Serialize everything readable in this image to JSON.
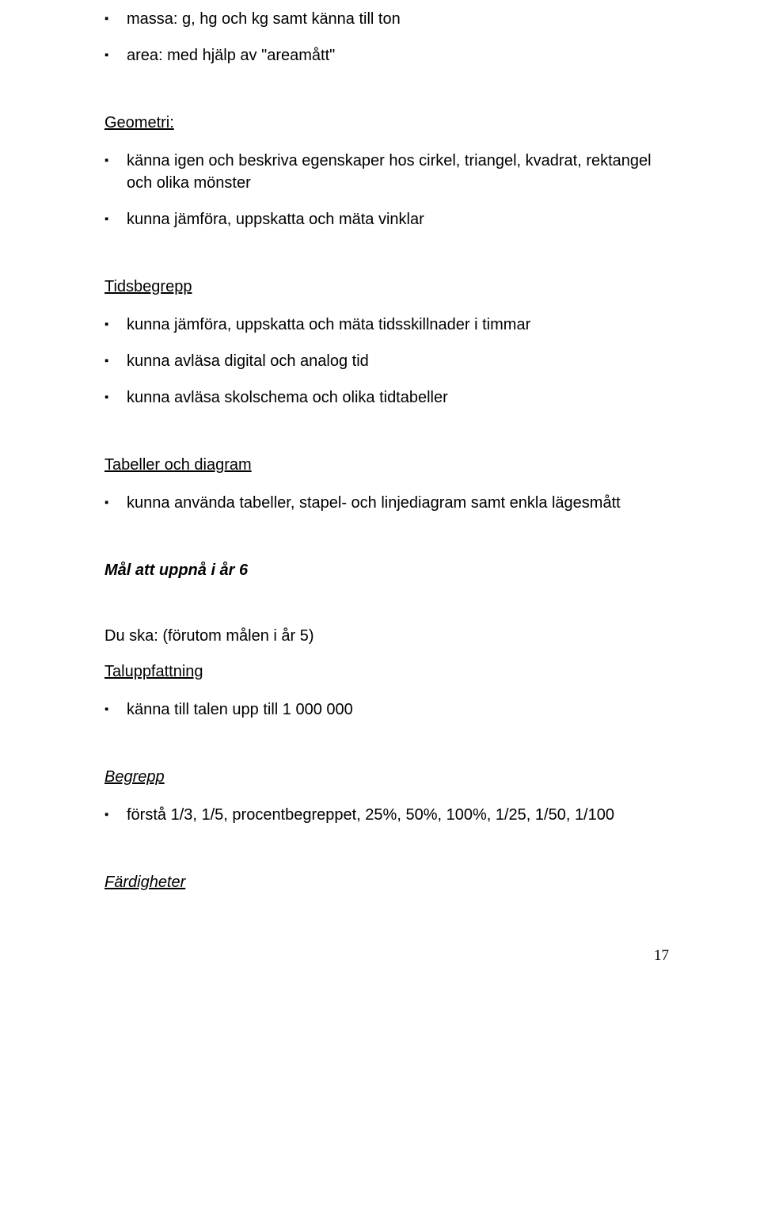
{
  "topList": [
    "massa: g, hg och kg samt känna till ton",
    "area:  med hjälp av \"areamått\""
  ],
  "sections": [
    {
      "heading": "Geometri:",
      "headingClass": "heading-underline",
      "items": [
        "känna igen och beskriva egenskaper hos cirkel, triangel, kvadrat, rektangel och olika mönster",
        "kunna jämföra, uppskatta och mäta vinklar"
      ]
    },
    {
      "heading": "Tidsbegrepp",
      "headingClass": "heading-underline",
      "items": [
        "kunna jämföra, uppskatta och mäta tidsskillnader i timmar",
        "kunna avläsa digital och analog tid",
        "kunna avläsa skolschema och olika tidtabeller"
      ]
    },
    {
      "heading": "Tabeller och diagram",
      "headingClass": "heading-underline",
      "items": [
        "kunna använda tabeller, stapel- och linjediagram samt enkla lägesmått"
      ]
    }
  ],
  "goalHeading": "Mål att uppnå i år 6",
  "subtext": "Du ska: (förutom målen i år 5)",
  "sections2": [
    {
      "heading": "Taluppfattning",
      "headingClass": "heading-underline",
      "items": [
        "känna till talen upp till 1 000 000"
      ]
    },
    {
      "heading": "Begrepp",
      "headingClass": "heading-italic-underline",
      "items": [
        "förstå 1/3, 1/5, procentbegreppet, 25%, 50%, 100%, 1/25, 1/50, 1/100"
      ]
    }
  ],
  "lastHeading": "Färdigheter",
  "pageNumber": "17"
}
